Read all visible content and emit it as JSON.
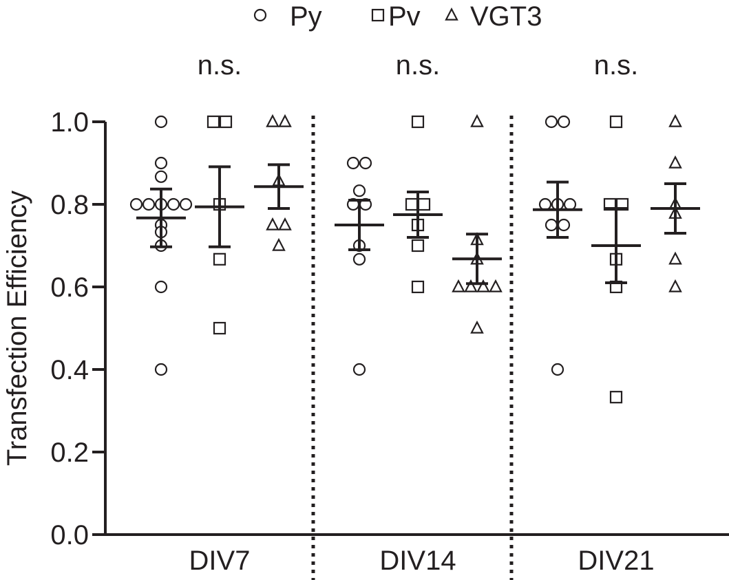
{
  "chart_data": {
    "type": "scatter",
    "title": "",
    "ylabel": "Transfection Efficiency",
    "xlabel": "",
    "ylim": [
      0,
      1.0
    ],
    "yticks": [
      0.0,
      0.2,
      0.4,
      0.6,
      0.8,
      1.0
    ],
    "ytick_labels": [
      "0.0",
      "0.2",
      "0.4",
      "0.6",
      "0.8",
      "1.0"
    ],
    "legend_position": "top-center",
    "legend": [
      {
        "label": "Py",
        "marker": "circle"
      },
      {
        "label": "Pv",
        "marker": "square"
      },
      {
        "label": "VGT3",
        "marker": "triangle"
      }
    ],
    "groups": [
      {
        "label": "DIV7",
        "significance": "n.s.",
        "series": [
          {
            "name": "Py",
            "marker": "circle",
            "mean": 0.767,
            "err_low": 0.697,
            "err_high": 0.837,
            "points": [
              1.0,
              0.9,
              0.867,
              0.8,
              0.8,
              0.8,
              0.8,
              0.8,
              0.75,
              0.733,
              0.7,
              0.6,
              0.4
            ]
          },
          {
            "name": "Pv",
            "marker": "square",
            "mean": 0.794,
            "err_low": 0.697,
            "err_high": 0.891,
            "points": [
              1.0,
              1.0,
              0.8,
              0.667,
              0.5
            ]
          },
          {
            "name": "VGT3",
            "marker": "triangle",
            "mean": 0.843,
            "err_low": 0.79,
            "err_high": 0.896,
            "points": [
              1.0,
              1.0,
              0.857,
              0.75,
              0.75,
              0.7
            ]
          }
        ]
      },
      {
        "label": "DIV14",
        "significance": "n.s.",
        "series": [
          {
            "name": "Py",
            "marker": "circle",
            "mean": 0.75,
            "err_low": 0.69,
            "err_high": 0.81,
            "points": [
              0.9,
              0.9,
              0.833,
              0.8,
              0.8,
              0.7,
              0.667,
              0.4
            ]
          },
          {
            "name": "Pv",
            "marker": "square",
            "mean": 0.775,
            "err_low": 0.72,
            "err_high": 0.83,
            "points": [
              1.0,
              0.8,
              0.8,
              0.75,
              0.7,
              0.6
            ]
          },
          {
            "name": "VGT3",
            "marker": "triangle",
            "mean": 0.668,
            "err_low": 0.608,
            "err_high": 0.728,
            "points": [
              1.0,
              0.714,
              0.667,
              0.6,
              0.6,
              0.6,
              0.6,
              0.5
            ]
          }
        ]
      },
      {
        "label": "DIV21",
        "significance": "n.s.",
        "series": [
          {
            "name": "Py",
            "marker": "circle",
            "mean": 0.787,
            "err_low": 0.72,
            "err_high": 0.854,
            "points": [
              1.0,
              1.0,
              0.8,
              0.8,
              0.8,
              0.75,
              0.75,
              0.4
            ]
          },
          {
            "name": "Pv",
            "marker": "square",
            "mean": 0.7,
            "err_low": 0.61,
            "err_high": 0.79,
            "points": [
              1.0,
              0.8,
              0.8,
              0.667,
              0.6,
              0.333
            ]
          },
          {
            "name": "VGT3",
            "marker": "triangle",
            "mean": 0.79,
            "err_low": 0.73,
            "err_high": 0.85,
            "points": [
              1.0,
              0.9,
              0.8,
              0.778,
              0.667,
              0.6
            ]
          }
        ]
      }
    ]
  }
}
